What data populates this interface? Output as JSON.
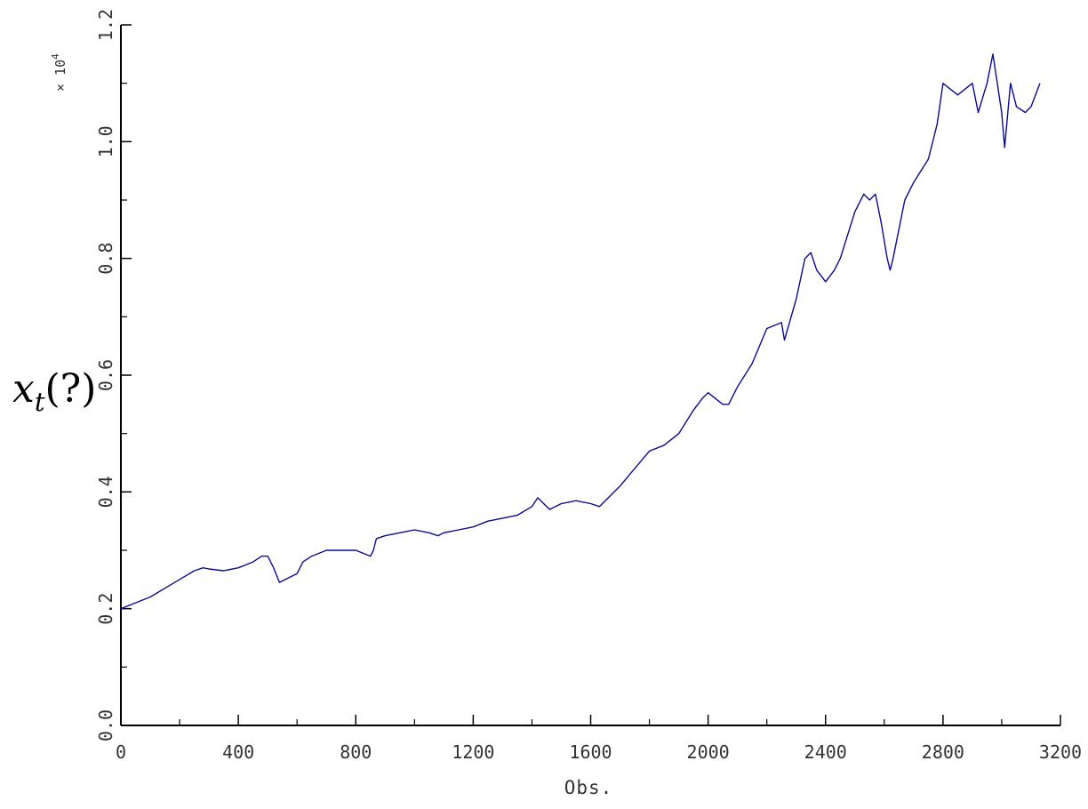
{
  "chart_data": {
    "type": "line",
    "xlabel": "Obs.",
    "ylabel": {
      "var": "x",
      "sub": "t",
      "suffix": "(?)"
    },
    "y_multiplier": {
      "base": "× 10",
      "exponent": "4"
    },
    "xlim": [
      0,
      3200
    ],
    "ylim": [
      0.0,
      1.2
    ],
    "x_ticks": [
      0,
      400,
      800,
      1200,
      1600,
      2000,
      2400,
      2800,
      3200
    ],
    "x_tick_labels": [
      "0",
      "400",
      "800",
      "1200",
      "1600",
      "2000",
      "2400",
      "2800",
      "3200"
    ],
    "y_ticks": [
      0.0,
      0.2,
      0.4,
      0.6,
      0.8,
      1.0,
      1.2
    ],
    "y_tick_labels": [
      "0.0",
      "0.2",
      "0.4",
      "0.6",
      "0.8",
      "1.0",
      "1.2"
    ],
    "grid": false,
    "series": [
      {
        "color": "#0a0a96",
        "x": [
          0,
          50,
          100,
          150,
          200,
          250,
          280,
          300,
          350,
          400,
          450,
          480,
          500,
          520,
          540,
          560,
          600,
          620,
          650,
          700,
          750,
          800,
          850,
          860,
          870,
          900,
          950,
          1000,
          1050,
          1080,
          1100,
          1150,
          1200,
          1250,
          1300,
          1350,
          1400,
          1420,
          1440,
          1460,
          1500,
          1550,
          1600,
          1630,
          1650,
          1700,
          1750,
          1800,
          1850,
          1900,
          1950,
          1980,
          2000,
          2050,
          2070,
          2100,
          2150,
          2200,
          2250,
          2260,
          2300,
          2330,
          2350,
          2370,
          2400,
          2430,
          2450,
          2500,
          2530,
          2550,
          2570,
          2590,
          2610,
          2620,
          2630,
          2650,
          2670,
          2700,
          2750,
          2780,
          2800,
          2850,
          2900,
          2920,
          2950,
          2970,
          3000,
          3010,
          3030,
          3050,
          3080,
          3100,
          3130
        ],
        "y": [
          0.2,
          0.21,
          0.22,
          0.235,
          0.25,
          0.265,
          0.27,
          0.268,
          0.265,
          0.27,
          0.28,
          0.29,
          0.29,
          0.27,
          0.245,
          0.25,
          0.26,
          0.28,
          0.29,
          0.3,
          0.3,
          0.3,
          0.29,
          0.3,
          0.32,
          0.325,
          0.33,
          0.335,
          0.33,
          0.325,
          0.33,
          0.335,
          0.34,
          0.35,
          0.355,
          0.36,
          0.375,
          0.39,
          0.38,
          0.37,
          0.38,
          0.385,
          0.38,
          0.375,
          0.385,
          0.41,
          0.44,
          0.47,
          0.48,
          0.5,
          0.54,
          0.56,
          0.57,
          0.55,
          0.55,
          0.58,
          0.62,
          0.68,
          0.69,
          0.66,
          0.73,
          0.8,
          0.81,
          0.78,
          0.76,
          0.78,
          0.8,
          0.88,
          0.91,
          0.9,
          0.91,
          0.86,
          0.8,
          0.78,
          0.8,
          0.85,
          0.9,
          0.93,
          0.97,
          1.03,
          1.1,
          1.08,
          1.1,
          1.05,
          1.1,
          1.15,
          1.05,
          0.99,
          1.1,
          1.06,
          1.05,
          1.06,
          1.1
        ]
      }
    ]
  }
}
